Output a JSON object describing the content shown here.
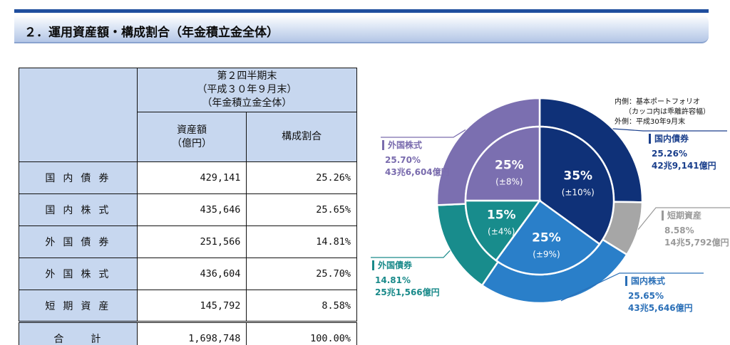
{
  "section_title": "２．運用資産額・構成割合（年金積立金全体）",
  "table": {
    "header_period": [
      "第２四半期末",
      "（平成３０年９月末）",
      "（年金積立金全体）"
    ],
    "col_amount": [
      "資産額",
      "（億円）"
    ],
    "col_ratio": "構成割合",
    "rows": [
      {
        "label": "国内債券",
        "amount": "429,141",
        "ratio": "25.26%"
      },
      {
        "label": "国内株式",
        "amount": "435,646",
        "ratio": "25.65%"
      },
      {
        "label": "外国債券",
        "amount": "251,566",
        "ratio": "14.81%"
      },
      {
        "label": "外国株式",
        "amount": "436,604",
        "ratio": "25.70%"
      },
      {
        "label": "短期資産",
        "amount": "145,792",
        "ratio": "8.58%"
      }
    ],
    "total": {
      "label": "合計",
      "amount": "1,698,748",
      "ratio": "100.00%"
    }
  },
  "chart_note": [
    "内側：基本ポートフォリオ",
    "（カッコ内は乖離許容幅）",
    "外側：平成30年9月末"
  ],
  "chart_data": {
    "type": "pie",
    "outer": {
      "label": "平成30年9月末",
      "slices": [
        {
          "name": "国内債券",
          "value": 25.26,
          "pct_text": "25.26%",
          "amount_text": "42兆9,141億円",
          "color": "#0f3178",
          "label_color": "#1a3f8c"
        },
        {
          "name": "短期資産",
          "value": 8.58,
          "pct_text": "8.58%",
          "amount_text": "14兆5,792億円",
          "color": "#a6a6a6",
          "label_color": "#9a9a9a"
        },
        {
          "name": "国内株式",
          "value": 25.65,
          "pct_text": "25.65%",
          "amount_text": "43兆5,646億円",
          "color": "#2a7fc9",
          "label_color": "#2a6fb7"
        },
        {
          "name": "外国債券",
          "value": 14.81,
          "pct_text": "14.81%",
          "amount_text": "25兆1,566億円",
          "color": "#188c8c",
          "label_color": "#1a8a8a"
        },
        {
          "name": "外国株式",
          "value": 25.7,
          "pct_text": "25.70%",
          "amount_text": "43兆6,604億円",
          "color": "#7b6fb0",
          "label_color": "#7a6cae"
        }
      ]
    },
    "inner": {
      "label": "基本ポートフォリオ",
      "slices": [
        {
          "name": "国内債券",
          "value": 35,
          "pct_text": "35%",
          "range_text": "(±10%)",
          "color": "#0f3178"
        },
        {
          "name": "国内株式",
          "value": 25,
          "pct_text": "25%",
          "range_text": "(±9%)",
          "color": "#2a7fc9"
        },
        {
          "name": "外国債券",
          "value": 15,
          "pct_text": "15%",
          "range_text": "(±4%)",
          "color": "#188c8c"
        },
        {
          "name": "外国株式",
          "value": 25,
          "pct_text": "25%",
          "range_text": "(±8%)",
          "color": "#7b6fb0"
        }
      ]
    }
  }
}
